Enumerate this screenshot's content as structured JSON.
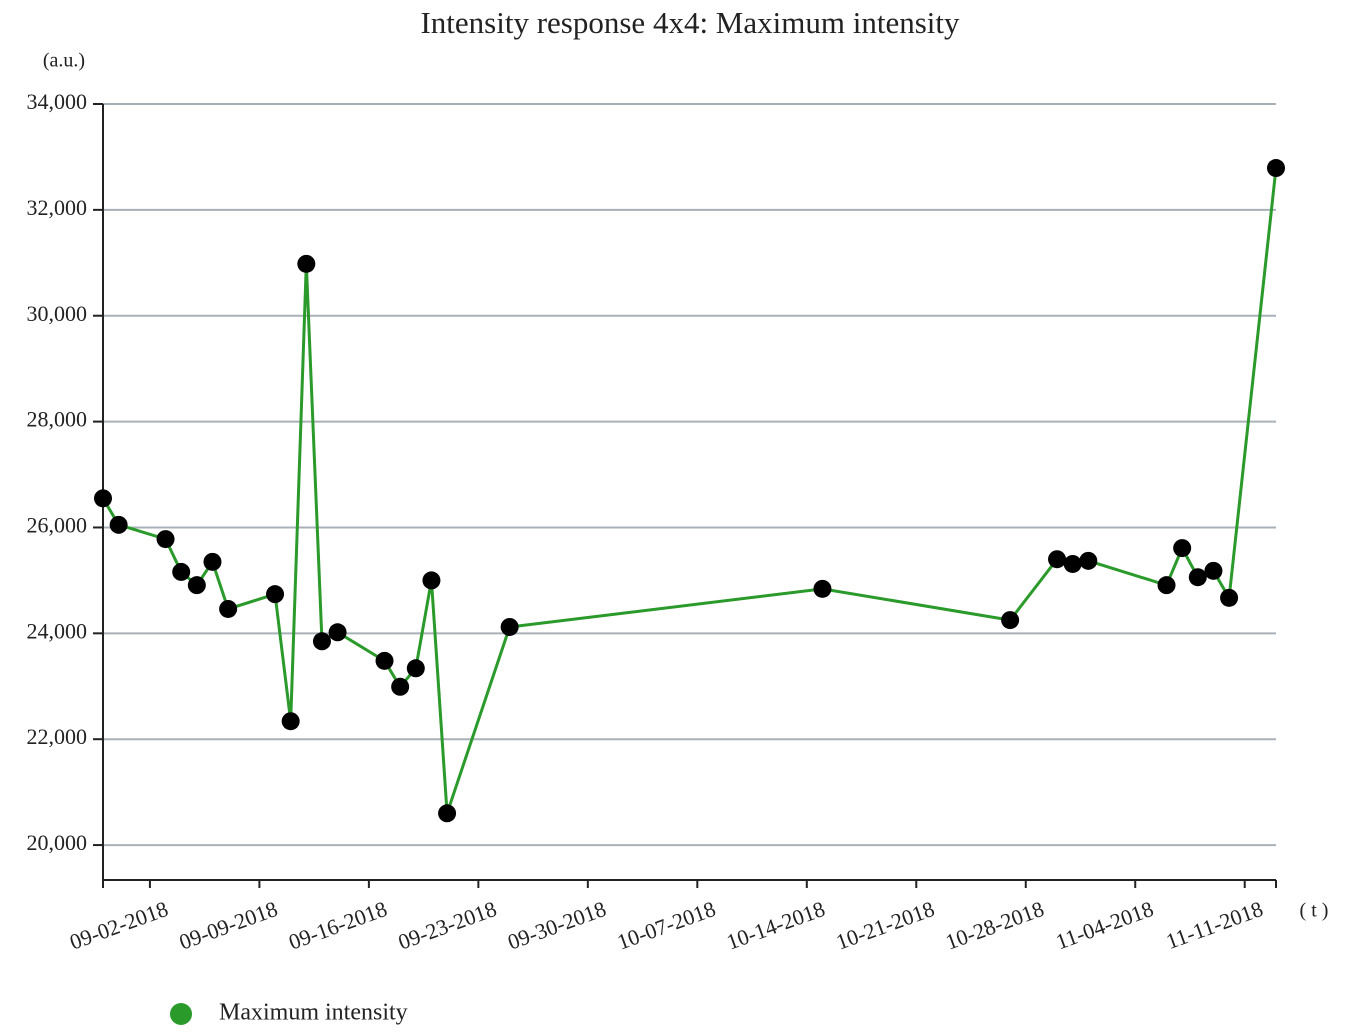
{
  "chart_data": {
    "type": "line",
    "title": "Intensity response 4x4: Maximum intensity",
    "y_label": "(a.u.)",
    "x_label": "( t )",
    "x": [
      "2018-08-30",
      "2018-08-31",
      "2018-09-03",
      "2018-09-04",
      "2018-09-05",
      "2018-09-06",
      "2018-09-07",
      "2018-09-10",
      "2018-09-11",
      "2018-09-12",
      "2018-09-13",
      "2018-09-14",
      "2018-09-17",
      "2018-09-18",
      "2018-09-19",
      "2018-09-20",
      "2018-09-21",
      "2018-09-25",
      "2018-10-15",
      "2018-10-27",
      "2018-10-30",
      "2018-10-31",
      "2018-11-01",
      "2018-11-06",
      "2018-11-07",
      "2018-11-08",
      "2018-11-09",
      "2018-11-10",
      "2018-11-13"
    ],
    "series": [
      {
        "name": "Maximum intensity",
        "color": "#2a9a2a",
        "marker_color": "#000000",
        "values": [
          26550,
          26050,
          25780,
          25160,
          24910,
          25350,
          24460,
          24740,
          22340,
          30980,
          23850,
          24020,
          23480,
          22990,
          23340,
          25000,
          20600,
          24120,
          24840,
          24250,
          25400,
          25310,
          25370,
          24910,
          25610,
          25060,
          25180,
          24670,
          32790
        ]
      }
    ],
    "xlim": [
      "2018-08-30",
      "2018-11-13"
    ],
    "xticks": [
      {
        "value": "2018-09-02",
        "label": "09-02-2018"
      },
      {
        "value": "2018-09-09",
        "label": "09-09-2018"
      },
      {
        "value": "2018-09-16",
        "label": "09-16-2018"
      },
      {
        "value": "2018-09-23",
        "label": "09-23-2018"
      },
      {
        "value": "2018-09-30",
        "label": "09-30-2018"
      },
      {
        "value": "2018-10-07",
        "label": "10-07-2018"
      },
      {
        "value": "2018-10-14",
        "label": "10-14-2018"
      },
      {
        "value": "2018-10-21",
        "label": "10-21-2018"
      },
      {
        "value": "2018-10-28",
        "label": "10-28-2018"
      },
      {
        "value": "2018-11-04",
        "label": "11-04-2018"
      },
      {
        "value": "2018-11-11",
        "label": "11-11-2018"
      }
    ],
    "ylim": [
      19340,
      34000
    ],
    "yticks": [
      {
        "value": 20000,
        "label": "20,000"
      },
      {
        "value": 22000,
        "label": "22,000"
      },
      {
        "value": 24000,
        "label": "24,000"
      },
      {
        "value": 26000,
        "label": "26,000"
      },
      {
        "value": 28000,
        "label": "28,000"
      },
      {
        "value": 30000,
        "label": "30,000"
      },
      {
        "value": 32000,
        "label": "32,000"
      },
      {
        "value": 34000,
        "label": "34,000"
      }
    ],
    "grid": true
  }
}
